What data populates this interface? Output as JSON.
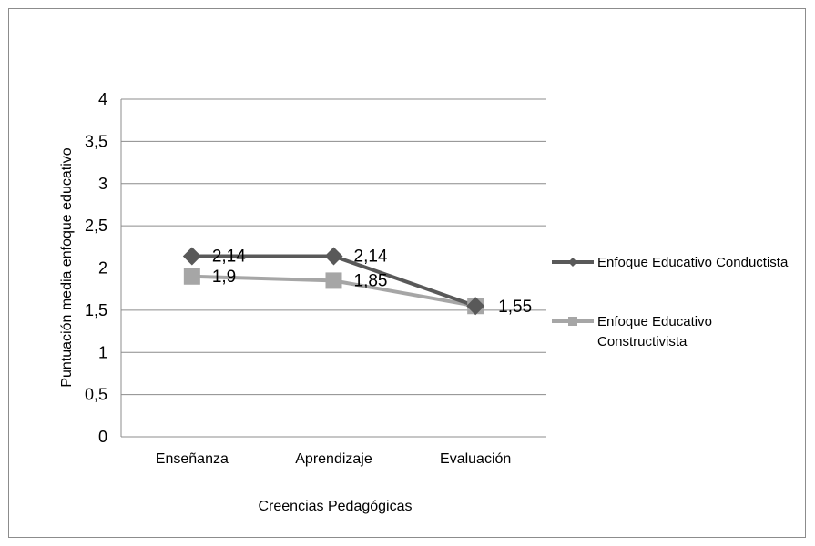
{
  "chart_data": {
    "type": "line",
    "categories": [
      "Enseñanza",
      "Aprendizaje",
      "Evaluación"
    ],
    "series": [
      {
        "name": "Enfoque Educativo Conductista",
        "values": [
          2.14,
          2.14,
          1.55
        ],
        "labels": [
          "2,14",
          "2,14",
          "1,55"
        ],
        "color": "#595959",
        "marker": "diamond"
      },
      {
        "name": "Enfoque Educativo Constructivista",
        "values": [
          1.9,
          1.85,
          1.55
        ],
        "labels": [
          "1,9",
          "1,85",
          ""
        ],
        "color": "#a6a6a6",
        "marker": "square"
      }
    ],
    "legend_lines": [
      [
        "Enfoque Educativo Conductista"
      ],
      [
        "Enfoque Educativo",
        "Constructivista"
      ]
    ],
    "xlabel": "Creencias Pedagógicas",
    "ylabel": "Puntuación media enfoque educativo",
    "ylim": [
      0,
      4
    ],
    "yticks": [
      0,
      0.5,
      1,
      1.5,
      2,
      2.5,
      3,
      3.5,
      4
    ],
    "ytick_labels": [
      "0",
      "0,5",
      "1",
      "1,5",
      "2",
      "2,5",
      "3",
      "3,5",
      "4"
    ],
    "grid": true,
    "legend_position": "right"
  }
}
